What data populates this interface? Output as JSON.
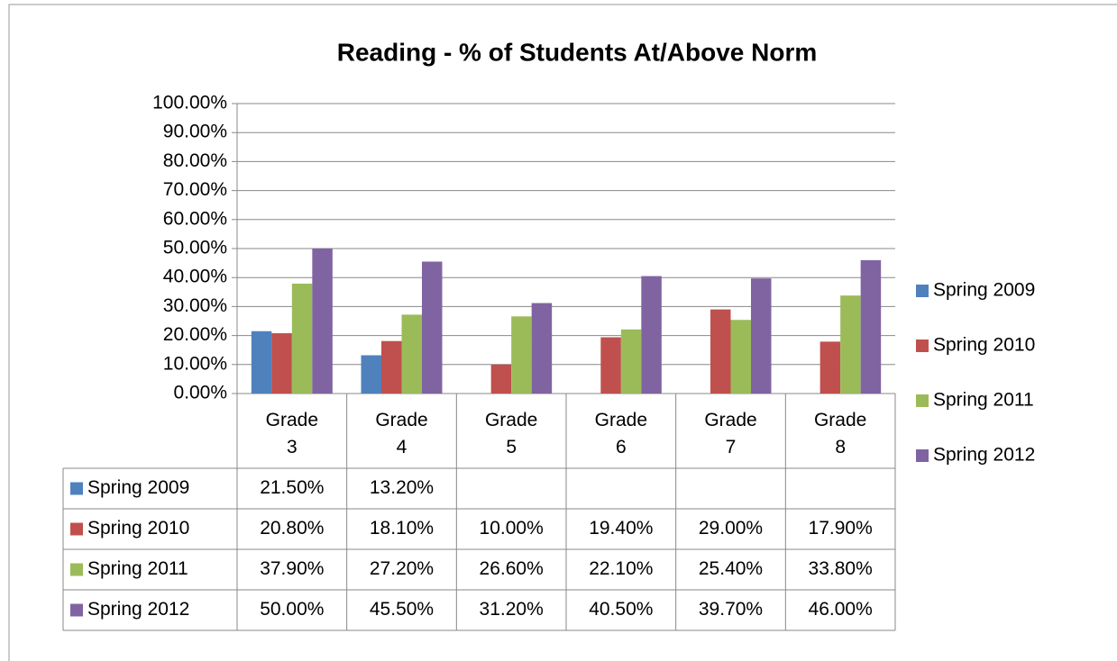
{
  "chart_data": {
    "type": "bar",
    "title": "Reading - % of Students At/Above Norm",
    "categories": [
      "Grade 3",
      "Grade 4",
      "Grade 5",
      "Grade 6",
      "Grade 7",
      "Grade 8"
    ],
    "series": [
      {
        "name": "Spring 2009",
        "color": "#4f81bd",
        "values": [
          21.5,
          13.2,
          null,
          null,
          null,
          null
        ],
        "value_labels": [
          "21.50%",
          "13.20%",
          null,
          null,
          null,
          null
        ]
      },
      {
        "name": "Spring 2010",
        "color": "#c0504d",
        "values": [
          20.8,
          18.1,
          10.0,
          19.4,
          29.0,
          17.9
        ],
        "value_labels": [
          "20.80%",
          "18.10%",
          "10.00%",
          "19.40%",
          "29.00%",
          "17.90%"
        ]
      },
      {
        "name": "Spring 2011",
        "color": "#9bbb59",
        "values": [
          37.9,
          27.2,
          26.6,
          22.1,
          25.4,
          33.8
        ],
        "value_labels": [
          "37.90%",
          "27.20%",
          "26.60%",
          "22.10%",
          "25.40%",
          "33.80%"
        ]
      },
      {
        "name": "Spring 2012",
        "color": "#8064a2",
        "values": [
          50.0,
          45.5,
          31.2,
          40.5,
          39.7,
          46.0
        ],
        "value_labels": [
          "50.00%",
          "45.50%",
          "31.20%",
          "40.50%",
          "39.70%",
          "46.00%"
        ]
      }
    ],
    "ylim": [
      0,
      100
    ],
    "yticks": [
      {
        "value": 0,
        "label": "0.00%"
      },
      {
        "value": 10,
        "label": "10.00%"
      },
      {
        "value": 20,
        "label": "20.00%"
      },
      {
        "value": 30,
        "label": "30.00%"
      },
      {
        "value": 40,
        "label": "40.00%"
      },
      {
        "value": 50,
        "label": "50.00%"
      },
      {
        "value": 60,
        "label": "60.00%"
      },
      {
        "value": 70,
        "label": "70.00%"
      },
      {
        "value": 80,
        "label": "80.00%"
      },
      {
        "value": 90,
        "label": "90.00%"
      },
      {
        "value": 100,
        "label": "100.00%"
      }
    ],
    "grid": true,
    "legend": "right"
  }
}
